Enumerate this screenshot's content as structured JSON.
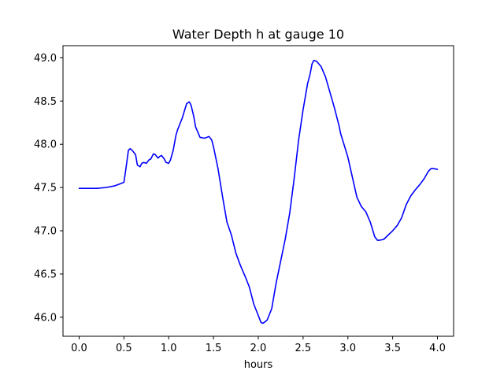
{
  "chart_data": {
    "type": "line",
    "title": "Water Depth h at gauge 10",
    "xlabel": "hours",
    "ylabel": "",
    "xlim": [
      -0.18,
      4.18
    ],
    "ylim": [
      45.78,
      49.14
    ],
    "xticks": [
      "0.0",
      "0.5",
      "1.0",
      "1.5",
      "2.0",
      "2.5",
      "3.0",
      "3.5",
      "4.0"
    ],
    "yticks": [
      "46.0",
      "46.5",
      "47.0",
      "47.5",
      "48.0",
      "48.5",
      "49.0"
    ],
    "grid": false,
    "series": [
      {
        "color": "#0000ff",
        "x": [
          0.0,
          0.1,
          0.2,
          0.3,
          0.4,
          0.45,
          0.5,
          0.52,
          0.55,
          0.57,
          0.6,
          0.63,
          0.65,
          0.68,
          0.7,
          0.72,
          0.75,
          0.78,
          0.8,
          0.83,
          0.85,
          0.88,
          0.9,
          0.92,
          0.95,
          0.97,
          1.0,
          1.02,
          1.05,
          1.08,
          1.1,
          1.15,
          1.2,
          1.23,
          1.25,
          1.28,
          1.3,
          1.35,
          1.4,
          1.45,
          1.48,
          1.5,
          1.55,
          1.6,
          1.65,
          1.7,
          1.75,
          1.8,
          1.85,
          1.9,
          1.95,
          2.0,
          2.03,
          2.05,
          2.08,
          2.1,
          2.15,
          2.2,
          2.25,
          2.3,
          2.35,
          2.4,
          2.45,
          2.5,
          2.55,
          2.58,
          2.6,
          2.62,
          2.65,
          2.7,
          2.75,
          2.8,
          2.85,
          2.9,
          2.92,
          2.95,
          3.0,
          3.05,
          3.1,
          3.15,
          3.2,
          3.25,
          3.3,
          3.33,
          3.35,
          3.4,
          3.45,
          3.5,
          3.55,
          3.6,
          3.65,
          3.7,
          3.75,
          3.8,
          3.85,
          3.9,
          3.93,
          3.95,
          4.0
        ],
        "values": [
          47.49,
          47.49,
          47.49,
          47.5,
          47.52,
          47.54,
          47.56,
          47.7,
          47.93,
          47.95,
          47.92,
          47.88,
          47.76,
          47.74,
          47.78,
          47.79,
          47.78,
          47.82,
          47.83,
          47.89,
          47.88,
          47.84,
          47.86,
          47.87,
          47.83,
          47.79,
          47.78,
          47.82,
          47.93,
          48.1,
          48.17,
          48.3,
          48.47,
          48.49,
          48.45,
          48.32,
          48.2,
          48.08,
          48.07,
          48.09,
          48.05,
          47.97,
          47.72,
          47.4,
          47.1,
          46.95,
          46.74,
          46.6,
          46.48,
          46.35,
          46.15,
          46.02,
          45.94,
          45.93,
          45.95,
          45.97,
          46.1,
          46.4,
          46.65,
          46.9,
          47.2,
          47.6,
          48.05,
          48.4,
          48.7,
          48.82,
          48.93,
          48.97,
          48.96,
          48.9,
          48.78,
          48.6,
          48.42,
          48.22,
          48.12,
          48.02,
          47.85,
          47.62,
          47.39,
          47.28,
          47.22,
          47.1,
          46.93,
          46.89,
          46.89,
          46.9,
          46.95,
          47.0,
          47.06,
          47.15,
          47.3,
          47.4,
          47.47,
          47.53,
          47.6,
          47.69,
          47.72,
          47.72,
          47.71
        ]
      }
    ]
  }
}
